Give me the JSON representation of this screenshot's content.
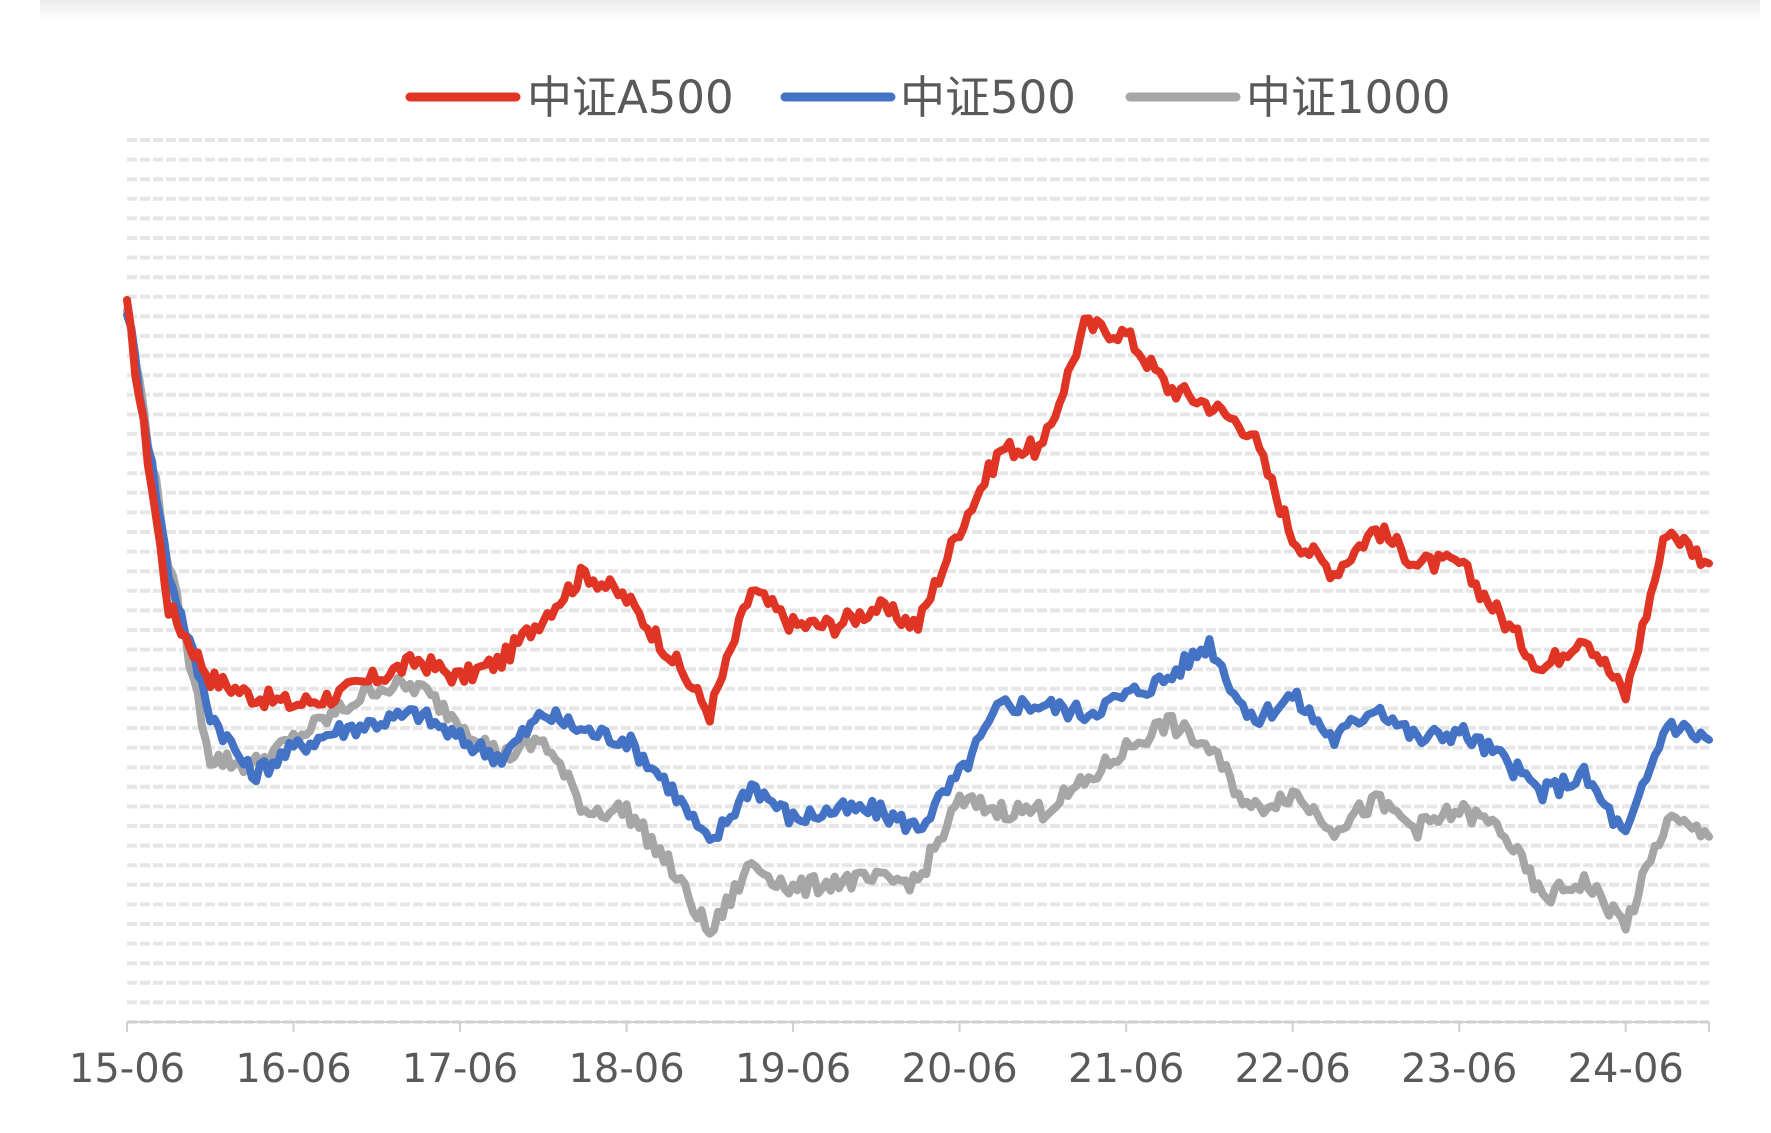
{
  "chart_data": {
    "type": "line",
    "title": "",
    "xlabel": "",
    "ylabel": "",
    "x_tick_labels": [
      "15-06",
      "16-06",
      "17-06",
      "18-06",
      "19-06",
      "20-06",
      "21-06",
      "22-06",
      "23-06",
      "24-06"
    ],
    "x": [
      "2015-06",
      "2015-09",
      "2015-12",
      "2016-03",
      "2016-06",
      "2016-09",
      "2016-12",
      "2017-03",
      "2017-06",
      "2017-09",
      "2017-12",
      "2018-03",
      "2018-06",
      "2018-09",
      "2018-12",
      "2019-03",
      "2019-06",
      "2019-09",
      "2019-12",
      "2020-03",
      "2020-06",
      "2020-09",
      "2020-12",
      "2021-03",
      "2021-06",
      "2021-09",
      "2021-12",
      "2022-03",
      "2022-06",
      "2022-09",
      "2022-12",
      "2023-03",
      "2023-06",
      "2023-09",
      "2023-12",
      "2024-03",
      "2024-06",
      "2024-09",
      "2024-12"
    ],
    "ylim": [
      0,
      100
    ],
    "y_axis_labels_visible": false,
    "grid": "horizontal dashed",
    "legend_position": "top",
    "series": [
      {
        "name": "中证A500",
        "color": "#e03525",
        "values": [
          81,
          47,
          39,
          37,
          36,
          37,
          39,
          41,
          39,
          41,
          46,
          51,
          48,
          42,
          35,
          49,
          45,
          45,
          47,
          45,
          56,
          65,
          65,
          79,
          78,
          72,
          70,
          67,
          55,
          51,
          56,
          52,
          52,
          46,
          40,
          44,
          37,
          56,
          52
        ]
      },
      {
        "name": "中证500",
        "color": "#4472c4",
        "values": [
          81,
          51,
          35,
          28,
          31,
          33,
          34,
          35,
          32,
          30,
          35,
          33,
          32,
          27,
          20,
          27,
          23,
          24,
          24,
          22,
          28,
          36,
          36,
          35,
          37,
          39,
          43,
          34,
          37,
          32,
          36,
          32,
          33,
          30,
          26,
          28,
          21,
          34,
          32
        ]
      },
      {
        "name": "中证1000",
        "color": "#a6a6a6",
        "values": [
          81,
          52,
          30,
          29,
          32,
          35,
          38,
          38,
          34,
          30,
          32,
          24,
          24,
          18,
          10,
          18,
          15,
          16,
          16,
          16,
          25,
          24,
          24,
          27,
          31,
          34,
          31,
          24,
          26,
          22,
          25,
          22,
          24,
          22,
          14,
          16,
          11,
          23,
          21
        ]
      }
    ]
  }
}
